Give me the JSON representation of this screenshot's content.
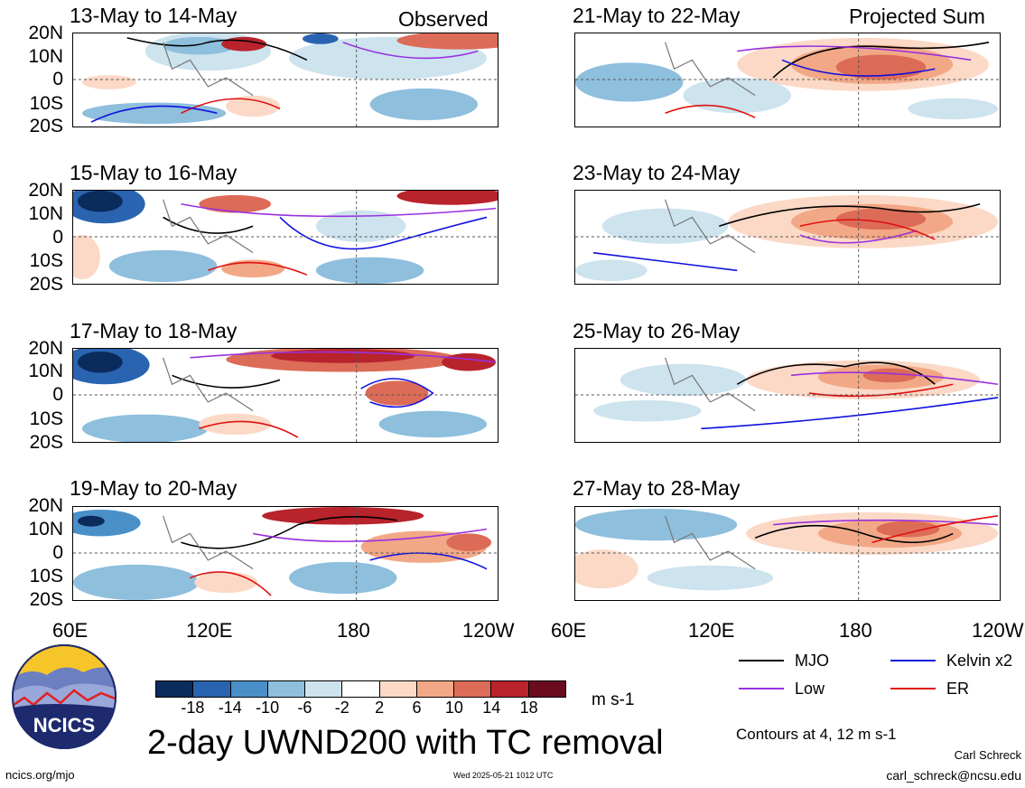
{
  "header": {
    "left_label": "Observed",
    "right_label": "Projected Sum"
  },
  "panels": {
    "left": [
      {
        "title": "13-May to 14-May"
      },
      {
        "title": "15-May to 16-May"
      },
      {
        "title": "17-May to 18-May"
      },
      {
        "title": "19-May to 20-May"
      }
    ],
    "right": [
      {
        "title": "21-May to 22-May"
      },
      {
        "title": "23-May to 24-May"
      },
      {
        "title": "25-May to 26-May"
      },
      {
        "title": "27-May to 28-May"
      }
    ]
  },
  "lat_labels": [
    "20N",
    "10N",
    "0",
    "10S",
    "20S"
  ],
  "lon_labels": [
    "60E",
    "120E",
    "180",
    "120W"
  ],
  "colorbar": {
    "colors": [
      "#0b2b5c",
      "#2a64b0",
      "#4a90c8",
      "#8ebfdd",
      "#cde3ee",
      "#ffffff",
      "#fbd9c6",
      "#f2a886",
      "#dc6b57",
      "#b8232c",
      "#6b0b1e"
    ],
    "labels": [
      "-18",
      "-14",
      "-10",
      "-6",
      "-2",
      "2",
      "6",
      "10",
      "14",
      "18"
    ],
    "units": "m s-1"
  },
  "legend": {
    "mjo": {
      "label": "MJO",
      "color": "#000000"
    },
    "kelvin": {
      "label": "Kelvin x2",
      "color": "#1010e0"
    },
    "low": {
      "label": "Low",
      "color": "#9a30e0"
    },
    "er": {
      "label": "ER",
      "color": "#e01010"
    }
  },
  "main_title": "2-day UWND200 with TC removal",
  "contour_note": "Contours at 4, 12 m s-1",
  "author": {
    "name": "Carl Schreck",
    "email": "carl_schreck@ncsu.edu"
  },
  "site_url": "ncics.org/mjo",
  "timestamp": "Wed 2025-05-21 1012 UTC",
  "logo_text": "NCICS"
}
